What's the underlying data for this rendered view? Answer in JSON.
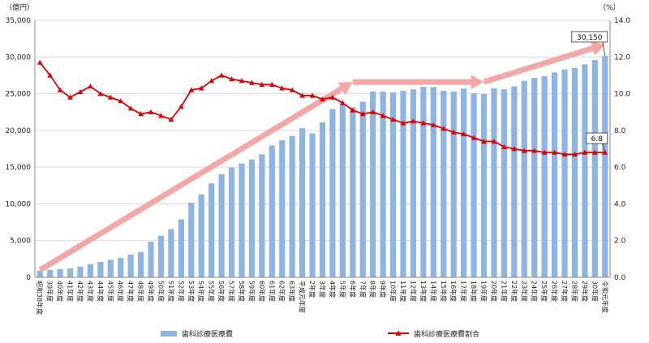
{
  "chart_data": {
    "type": "bar",
    "categories": [
      "昭和38年度",
      "39年度",
      "40年度",
      "41年度",
      "42年度",
      "43年度",
      "44年度",
      "45年度",
      "46年度",
      "47年度",
      "48年度",
      "49年度",
      "50年度",
      "51年度",
      "52年度",
      "53年度",
      "54年度",
      "55年度",
      "56年度",
      "57年度",
      "58年度",
      "59年度",
      "60年度",
      "61年度",
      "62年度",
      "63年度",
      "平成元年度",
      "2年度",
      "3年度",
      "4年度",
      "5年度",
      "6年度",
      "7年度",
      "8年度",
      "9年度",
      "10年度",
      "11年度",
      "12年度",
      "13年度",
      "14年度",
      "15年度",
      "16年度",
      "17年度",
      "18年度",
      "19年度",
      "20年度",
      "21年度",
      "22年度",
      "23年度",
      "24年度",
      "25年度",
      "26年度",
      "27年度",
      "28年度",
      "29年度",
      "30年度",
      "令和元年度"
    ],
    "series": [
      {
        "name": "歯科診療医療費",
        "type": "bar",
        "axis": "left",
        "color": "#8eb4e3",
        "values": [
          900,
          1000,
          1100,
          1200,
          1450,
          1800,
          2100,
          2400,
          2650,
          3100,
          3450,
          4850,
          5650,
          6550,
          7900,
          10150,
          11300,
          12800,
          14050,
          14950,
          15500,
          16050,
          16750,
          17950,
          18650,
          19250,
          20300,
          19600,
          21100,
          22900,
          23500,
          23150,
          23900,
          25300,
          25300,
          25200,
          25400,
          25600,
          25950,
          25900,
          25400,
          25300,
          25700,
          25050,
          24950,
          25750,
          25600,
          26000,
          26750,
          27150,
          27400,
          27900,
          28300,
          28500,
          29000,
          29600,
          30150
        ]
      },
      {
        "name": "歯科診療医療費割合",
        "type": "line",
        "axis": "right",
        "color": "#e00000",
        "marker": "triangle",
        "values": [
          11.7,
          11.0,
          10.2,
          9.8,
          10.1,
          10.4,
          10.0,
          9.8,
          9.6,
          9.2,
          8.9,
          9.0,
          8.8,
          8.6,
          9.3,
          10.2,
          10.3,
          10.7,
          11.0,
          10.8,
          10.7,
          10.6,
          10.5,
          10.5,
          10.3,
          10.2,
          9.9,
          9.9,
          9.7,
          9.8,
          9.5,
          9.1,
          8.9,
          9.0,
          8.8,
          8.6,
          8.4,
          8.5,
          8.4,
          8.3,
          8.1,
          7.9,
          7.8,
          7.6,
          7.4,
          7.4,
          7.1,
          7.0,
          6.9,
          6.9,
          6.8,
          6.8,
          6.7,
          6.7,
          6.8,
          6.8,
          6.8
        ]
      }
    ],
    "y_left": {
      "label": "（億円）",
      "min": 0,
      "max": 35000,
      "step": 5000,
      "tick_labels": [
        "0",
        "5,000",
        "10,000",
        "15,000",
        "20,000",
        "25,000",
        "30,000",
        "35,000"
      ]
    },
    "y_right": {
      "label": "（%）",
      "min": 0,
      "max": 14,
      "step": 2,
      "tick_labels": [
        "0.0",
        "2.0",
        "4.0",
        "6.0",
        "8.0",
        "10.0",
        "12.0",
        "14.0"
      ]
    },
    "grid": {
      "horizontal": true,
      "color": "#d9d9d9"
    },
    "legend": {
      "placement": "bottom",
      "entries": [
        "歯科診療医療費",
        "歯科診療医療費割合"
      ]
    },
    "annotations": [
      {
        "text": "30,150",
        "series": 0,
        "index": 56
      },
      {
        "text": "6.8",
        "series": 1,
        "index": 56
      }
    ],
    "trend_arrows": {
      "color": "#f4a7a7",
      "arrows": [
        {
          "from": {
            "category": "昭和38年度",
            "value": 1000
          },
          "to": {
            "category": "6年度",
            "value": 26600
          }
        },
        {
          "from": {
            "category": "6年度",
            "value": 26600
          },
          "to": {
            "category": "19年度",
            "value": 26600
          }
        },
        {
          "from": {
            "category": "19年度",
            "value": 26600
          },
          "to": {
            "category": "令和元年度",
            "value": 31700
          }
        }
      ]
    }
  }
}
